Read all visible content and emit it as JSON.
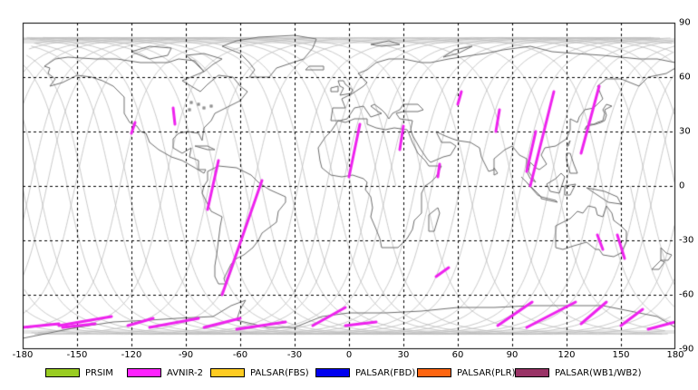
{
  "map": {
    "lon_range": [
      -180,
      180
    ],
    "lat_range": [
      -90,
      90
    ],
    "x_ticks": [
      "-180",
      "-150",
      "-120",
      "-90",
      "-60",
      "-30",
      "0",
      "30",
      "60",
      "90",
      "120",
      "150",
      "180"
    ],
    "y_ticks": [
      "90",
      "60",
      "30",
      "0",
      "-30",
      "-60",
      "-90"
    ],
    "grid_step_degrees": 30,
    "colors": {
      "coastline": "#6e6e6e",
      "orbit": "#bdbdbd",
      "grid": "#000000",
      "frame": "#000000",
      "avnir2_scene": "#ee22ee"
    }
  },
  "legend": [
    {
      "label": "PRSIM",
      "color": "#99cc22"
    },
    {
      "label": "AVNIR-2",
      "color": "#ff22ff"
    },
    {
      "label": "PALSAR(FBS)",
      "color": "#ffcc22"
    },
    {
      "label": "PALSAR(FBD)",
      "color": "#0000ee"
    },
    {
      "label": "PALSAR(PLR)",
      "color": "#ff6611"
    },
    {
      "label": "PALSAR(WB1/WB2)",
      "color": "#993366"
    }
  ],
  "scenes": [
    {
      "sensor": "AVNIR-2",
      "lon1": -97,
      "lat1": 43,
      "lon2": -96,
      "lat2": 34
    },
    {
      "sensor": "AVNIR-2",
      "lon1": -118,
      "lat1": 35,
      "lon2": -120,
      "lat2": 29
    },
    {
      "sensor": "AVNIR-2",
      "lon1": -72,
      "lat1": 14,
      "lon2": -78,
      "lat2": -13
    },
    {
      "sensor": "AVNIR-2",
      "lon1": -48,
      "lat1": 3,
      "lon2": -70,
      "lat2": -60
    },
    {
      "sensor": "AVNIR-2",
      "lon1": 6,
      "lat1": 34,
      "lon2": 0,
      "lat2": 5
    },
    {
      "sensor": "AVNIR-2",
      "lon1": 30,
      "lat1": 33,
      "lon2": 28,
      "lat2": 20
    },
    {
      "sensor": "AVNIR-2",
      "lon1": 50,
      "lat1": 12,
      "lon2": 49,
      "lat2": 5
    },
    {
      "sensor": "AVNIR-2",
      "lon1": 62,
      "lat1": 52,
      "lon2": 60,
      "lat2": 45
    },
    {
      "sensor": "AVNIR-2",
      "lon1": 83,
      "lat1": 42,
      "lon2": 81,
      "lat2": 30
    },
    {
      "sensor": "AVNIR-2",
      "lon1": 113,
      "lat1": 52,
      "lon2": 100,
      "lat2": 0
    },
    {
      "sensor": "AVNIR-2",
      "lon1": 103,
      "lat1": 30,
      "lon2": 98,
      "lat2": 8
    },
    {
      "sensor": "AVNIR-2",
      "lon1": 138,
      "lat1": 55,
      "lon2": 128,
      "lat2": 18
    },
    {
      "sensor": "AVNIR-2",
      "lon1": 152,
      "lat1": -40,
      "lon2": 148,
      "lat2": -27
    },
    {
      "sensor": "AVNIR-2",
      "lon1": 140,
      "lat1": -35,
      "lon2": 137,
      "lat2": -27
    },
    {
      "sensor": "AVNIR-2",
      "lon1": 48,
      "lat1": -50,
      "lon2": 55,
      "lat2": -45
    },
    {
      "sensor": "AVNIR-2",
      "lon1": -180,
      "lat1": -78,
      "lon2": -160,
      "lat2": -76
    },
    {
      "sensor": "AVNIR-2",
      "lon1": -160,
      "lat1": -77,
      "lon2": -131,
      "lat2": -72
    },
    {
      "sensor": "AVNIR-2",
      "lon1": -158,
      "lat1": -78,
      "lon2": -140,
      "lat2": -76
    },
    {
      "sensor": "AVNIR-2",
      "lon1": -122,
      "lat1": -77,
      "lon2": -108,
      "lat2": -73
    },
    {
      "sensor": "AVNIR-2",
      "lon1": -110,
      "lat1": -78,
      "lon2": -83,
      "lat2": -73
    },
    {
      "sensor": "AVNIR-2",
      "lon1": -80,
      "lat1": -78,
      "lon2": -60,
      "lat2": -73
    },
    {
      "sensor": "AVNIR-2",
      "lon1": -62,
      "lat1": -79,
      "lon2": -35,
      "lat2": -75
    },
    {
      "sensor": "AVNIR-2",
      "lon1": -20,
      "lat1": -77,
      "lon2": -2,
      "lat2": -67
    },
    {
      "sensor": "AVNIR-2",
      "lon1": -2,
      "lat1": -77,
      "lon2": 15,
      "lat2": -75
    },
    {
      "sensor": "AVNIR-2",
      "lon1": 82,
      "lat1": -77,
      "lon2": 101,
      "lat2": -64
    },
    {
      "sensor": "AVNIR-2",
      "lon1": 98,
      "lat1": -78,
      "lon2": 125,
      "lat2": -64
    },
    {
      "sensor": "AVNIR-2",
      "lon1": 128,
      "lat1": -76,
      "lon2": 142,
      "lat2": -64
    },
    {
      "sensor": "AVNIR-2",
      "lon1": 150,
      "lat1": -77,
      "lon2": 162,
      "lat2": -68
    },
    {
      "sensor": "AVNIR-2",
      "lon1": 165,
      "lat1": -79,
      "lon2": 180,
      "lat2": -75
    }
  ]
}
